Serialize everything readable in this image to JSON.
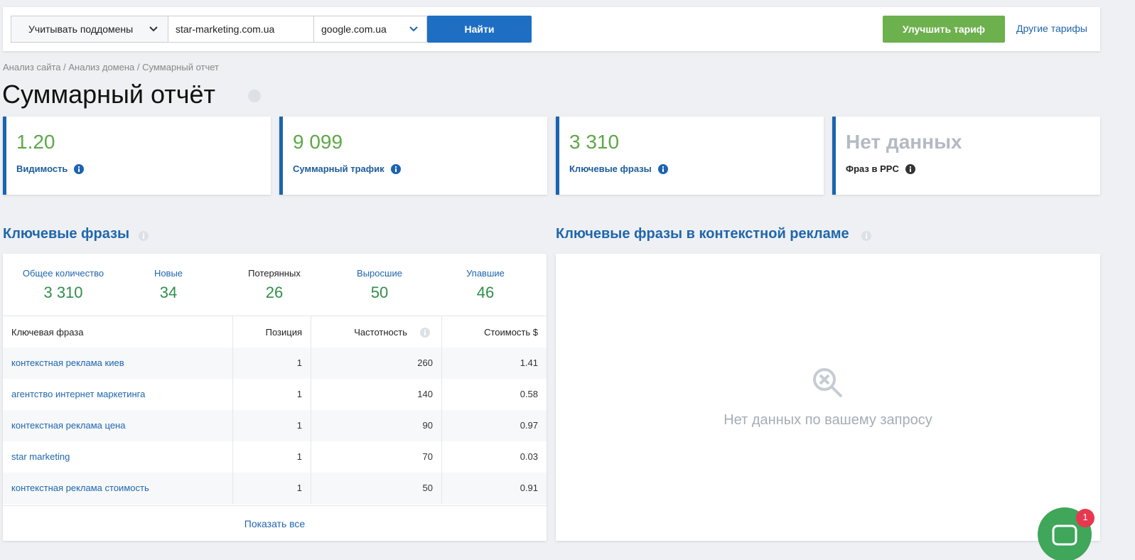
{
  "toolbar": {
    "subdomains": "Учитывать поддомены",
    "domain": "star-marketing.com.ua",
    "engine": "google.com.ua",
    "search": "Найти",
    "upgrade": "Улучшить тариф",
    "other_plans": "Другие тарифы"
  },
  "breadcrumb": "Анализ сайта / Анализ домена / Суммарный отчет",
  "title": "Суммарный отчёт",
  "cards": [
    {
      "value": "1.20",
      "label": "Видимость"
    },
    {
      "value": "9 099",
      "label": "Суммарный трафик"
    },
    {
      "value": "3 310",
      "label": "Ключевые фразы"
    },
    {
      "value": "Нет данных",
      "label": "Фраз в PPC"
    }
  ],
  "keywords": {
    "title": "Ключевые фразы",
    "stats": [
      {
        "label": "Общее количество",
        "value": "3 310"
      },
      {
        "label": "Новые",
        "value": "34"
      },
      {
        "label": "Потерянных",
        "value": "26"
      },
      {
        "label": "Выросшие",
        "value": "50"
      },
      {
        "label": "Упавшие",
        "value": "46"
      }
    ],
    "columns": [
      "Ключевая фраза",
      "Позиция",
      "Частотность",
      "Стоимость $"
    ],
    "rows": [
      [
        "контекстная реклама киев",
        "1",
        "260",
        "1.41"
      ],
      [
        "агентство интернет маркетинга",
        "1",
        "140",
        "0.58"
      ],
      [
        "контекстная реклама цена",
        "1",
        "90",
        "0.97"
      ],
      [
        "star marketing",
        "1",
        "70",
        "0.03"
      ],
      [
        "контекстная реклама стоимость",
        "1",
        "50",
        "0.91"
      ]
    ],
    "show_all": "Показать все"
  },
  "ppc": {
    "title": "Ключевые фразы в контекстной рекламе",
    "empty": "Нет данных по вашему запросу"
  },
  "chat_badge": "1"
}
